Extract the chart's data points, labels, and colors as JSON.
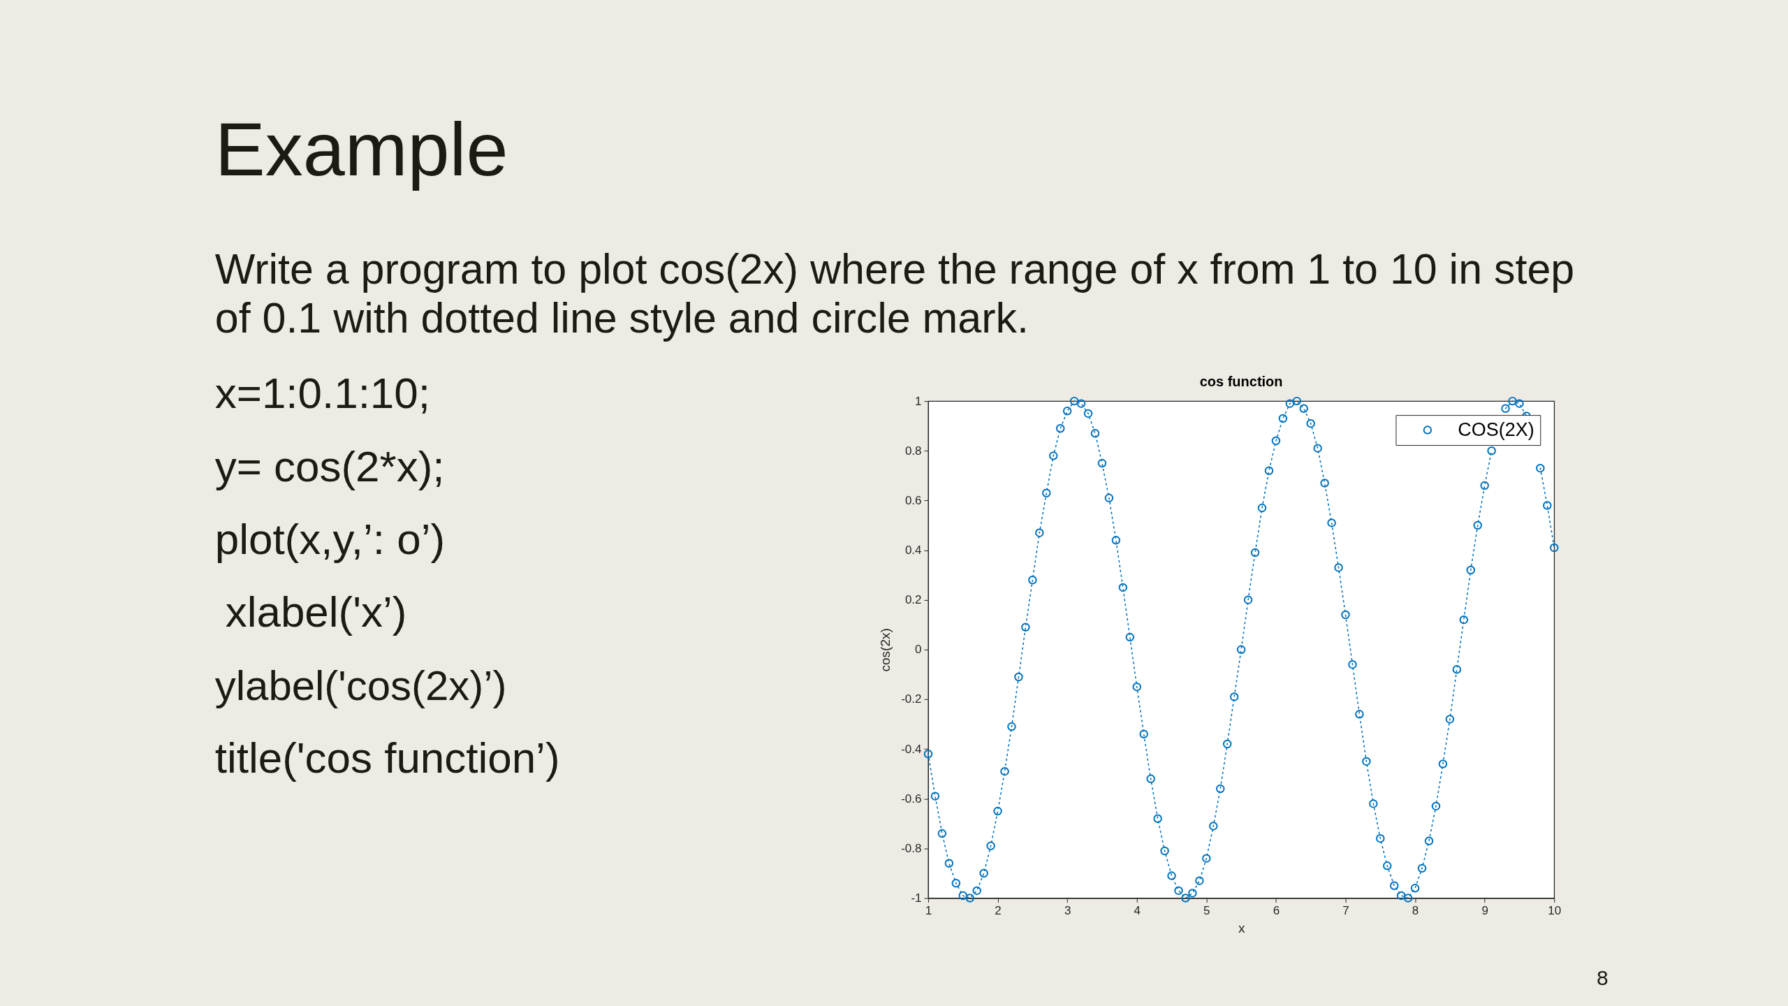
{
  "chart_data": {
    "type": "line",
    "title": "cos function",
    "xlabel": "x",
    "ylabel": "cos(2x)",
    "x": [
      1,
      1.1,
      1.2,
      1.3,
      1.4,
      1.5,
      1.6,
      1.7,
      1.8,
      1.9,
      2,
      2.1,
      2.2,
      2.3,
      2.4,
      2.5,
      2.6,
      2.7,
      2.8,
      2.9,
      3,
      3.1,
      3.2,
      3.3,
      3.4,
      3.5,
      3.6,
      3.7,
      3.8,
      3.9,
      4,
      4.1,
      4.2,
      4.3,
      4.4,
      4.5,
      4.6,
      4.7,
      4.8,
      4.9,
      5,
      5.1,
      5.2,
      5.3,
      5.4,
      5.5,
      5.6,
      5.7,
      5.8,
      5.9,
      6,
      6.1,
      6.2,
      6.3,
      6.4,
      6.5,
      6.6,
      6.7,
      6.8,
      6.9,
      7,
      7.1,
      7.2,
      7.3,
      7.4,
      7.5,
      7.6,
      7.7,
      7.8,
      7.9,
      8,
      8.1,
      8.2,
      8.3,
      8.4,
      8.5,
      8.6,
      8.7,
      8.8,
      8.9,
      9,
      9.1,
      9.2,
      9.3,
      9.4,
      9.5,
      9.6,
      9.7,
      9.8,
      9.9,
      10
    ],
    "series": [
      {
        "name": "COS(2X)",
        "color": "#0072bd",
        "values": [
          -0.42,
          -0.59,
          -0.74,
          -0.86,
          -0.94,
          -0.99,
          -1.0,
          -0.97,
          -0.9,
          -0.79,
          -0.65,
          -0.49,
          -0.31,
          -0.11,
          0.09,
          0.28,
          0.47,
          0.63,
          0.78,
          0.89,
          0.96,
          1.0,
          0.99,
          0.95,
          0.87,
          0.75,
          0.61,
          0.44,
          0.25,
          0.05,
          -0.15,
          -0.34,
          -0.52,
          -0.68,
          -0.81,
          -0.91,
          -0.97,
          -1.0,
          -0.98,
          -0.93,
          -0.84,
          -0.71,
          -0.56,
          -0.38,
          -0.19,
          0.0,
          0.2,
          0.39,
          0.57,
          0.72,
          0.84,
          0.93,
          0.99,
          1.0,
          0.97,
          0.91,
          0.81,
          0.67,
          0.51,
          0.33,
          0.14,
          -0.06,
          -0.26,
          -0.45,
          -0.62,
          -0.76,
          -0.87,
          -0.95,
          -0.99,
          -1.0,
          -0.96,
          -0.88,
          -0.77,
          -0.63,
          -0.46,
          -0.28,
          -0.08,
          0.12,
          0.32,
          0.5,
          0.66,
          0.8,
          null,
          0.97,
          1.0,
          0.99,
          0.94,
          null,
          0.73,
          0.58,
          0.41
        ]
      }
    ],
    "xlim": [
      1,
      10
    ],
    "xticks": [
      1,
      2,
      3,
      4,
      5,
      6,
      7,
      8,
      9,
      10
    ],
    "ylim": [
      -1,
      1
    ],
    "yticks": [
      -1,
      -0.8,
      -0.6,
      -0.4,
      -0.2,
      0,
      0.2,
      0.4,
      0.6,
      0.8,
      1
    ],
    "grid": false,
    "legend": "top right",
    "marker": "circle",
    "line_style": "dotted",
    "annotations": [
      "Example",
      "Write a program to plot cos(2x) where the range of x from 1 to 10 in step",
      "of 0.1 with dotted line style and circle mark.",
      "x=1:0.1:10;",
      "y= cos(2*x);",
      "plot(x,y,’: o’)",
      "xlabel('x’)",
      "ylabel('cos(2x)’)",
      "title('cos function’)",
      "8"
    ]
  }
}
